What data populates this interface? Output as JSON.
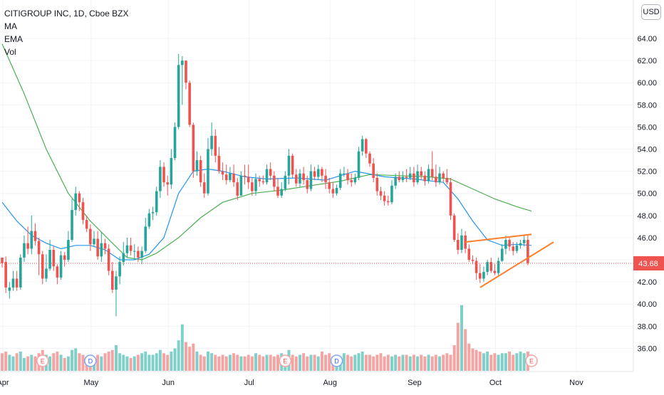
{
  "header": {
    "symbol_line": "CITIGROUP INC, 1D, Cboe BZX",
    "indicators": [
      "MA",
      "EMA",
      "Vol"
    ],
    "currency_button": "USD"
  },
  "price_label": "43.68",
  "colors": {
    "up": "#26a69a",
    "down": "#ef5350",
    "ma_line": "#2196f3",
    "ema_line": "#4caf50",
    "pattern": "#ff7f2a",
    "price_tag": "#ef5350"
  },
  "chart_data": {
    "type": "candlestick",
    "title": "CITIGROUP INC, 1D, Cboe BZX",
    "y_axis": {
      "side": "right",
      "range": [
        34.5,
        67
      ],
      "ticks": [
        "36.00",
        "38.00",
        "40.00",
        "42.00",
        "44.00",
        "46.00",
        "48.00",
        "50.00",
        "52.00",
        "54.00",
        "56.00",
        "58.00",
        "60.00",
        "62.00",
        "64.00"
      ]
    },
    "x_axis": {
      "labels": [
        "Apr",
        "May",
        "Jun",
        "Jul",
        "Aug",
        "Sep",
        "Oct",
        "Nov"
      ]
    },
    "last_price": 43.68,
    "grid": true,
    "candles": [
      [
        44.2,
        43.7,
        44.0,
        43.3
      ],
      [
        43.8,
        41.5,
        44.3,
        41.0
      ],
      [
        41.2,
        41.5,
        42.0,
        40.5
      ],
      [
        41.5,
        42.3,
        43.0,
        41.2
      ],
      [
        42.3,
        41.5,
        43.0,
        41.2
      ],
      [
        41.5,
        44.2,
        44.5,
        41.3
      ],
      [
        44.2,
        45.5,
        46.2,
        43.8
      ],
      [
        45.5,
        45.0,
        47.0,
        44.5
      ],
      [
        45.0,
        46.6,
        48.0,
        44.5
      ],
      [
        46.6,
        45.7,
        47.3,
        45.3
      ],
      [
        45.7,
        44.5,
        46.0,
        42.6
      ],
      [
        44.5,
        42.3,
        44.8,
        41.8
      ],
      [
        42.3,
        43.2,
        44.5,
        42.0
      ],
      [
        43.2,
        44.9,
        45.8,
        43.0
      ],
      [
        44.9,
        43.4,
        45.2,
        43.0
      ],
      [
        43.4,
        42.4,
        43.6,
        41.8
      ],
      [
        42.4,
        44.4,
        44.8,
        42.2
      ],
      [
        44.4,
        44.0,
        44.7,
        43.4
      ],
      [
        44.0,
        45.8,
        46.6,
        43.8
      ],
      [
        45.8,
        48.5,
        49.5,
        45.6
      ],
      [
        48.5,
        50.0,
        50.6,
        48.0
      ],
      [
        50.0,
        49.2,
        50.2,
        48.4
      ],
      [
        49.2,
        47.6,
        49.6,
        47.2
      ],
      [
        47.6,
        46.8,
        48.0,
        46.5
      ],
      [
        46.8,
        45.4,
        47.2,
        44.8
      ],
      [
        45.4,
        45.9,
        46.6,
        45.2
      ],
      [
        45.9,
        44.3,
        46.6,
        44.0
      ],
      [
        44.3,
        45.5,
        46.5,
        43.8
      ],
      [
        45.5,
        45.0,
        45.9,
        44.5
      ],
      [
        45.0,
        43.0,
        45.4,
        42.6
      ],
      [
        43.0,
        41.3,
        43.8,
        41.0
      ],
      [
        41.3,
        42.5,
        43.0,
        38.9
      ],
      [
        42.5,
        43.8,
        44.3,
        41.8
      ],
      [
        43.8,
        44.6,
        45.6,
        43.5
      ],
      [
        44.6,
        45.3,
        46.0,
        44.2
      ],
      [
        45.3,
        44.8,
        46.0,
        44.4
      ],
      [
        44.8,
        44.8,
        45.4,
        44.0
      ],
      [
        44.8,
        44.2,
        45.2,
        43.8
      ],
      [
        44.2,
        44.8,
        45.2,
        43.6
      ],
      [
        44.8,
        47.0,
        47.8,
        44.6
      ],
      [
        47.0,
        48.2,
        48.6,
        46.8
      ],
      [
        48.2,
        48.3,
        48.8,
        47.6
      ],
      [
        48.3,
        50.2,
        50.6,
        48.0
      ],
      [
        50.2,
        52.4,
        53.0,
        49.6
      ],
      [
        52.4,
        51.0,
        52.8,
        50.6
      ],
      [
        51.0,
        50.8,
        51.6,
        49.8
      ],
      [
        50.8,
        53.2,
        54.0,
        50.4
      ],
      [
        53.2,
        56.0,
        56.4,
        53.0
      ],
      [
        56.0,
        61.6,
        62.6,
        55.8
      ],
      [
        61.6,
        62.0,
        62.4,
        58.0
      ],
      [
        62.0,
        60.0,
        61.0,
        59.4
      ],
      [
        60.0,
        56.2,
        60.2,
        56.0
      ],
      [
        56.2,
        52.0,
        56.4,
        51.4
      ],
      [
        52.0,
        53.0,
        53.8,
        51.6
      ],
      [
        53.0,
        51.0,
        53.4,
        50.6
      ],
      [
        51.0,
        50.0,
        51.8,
        49.6
      ],
      [
        50.0,
        54.0,
        55.0,
        49.8
      ],
      [
        54.0,
        55.2,
        56.4,
        53.4
      ],
      [
        55.2,
        53.4,
        55.8,
        52.8
      ],
      [
        53.4,
        52.0,
        54.2,
        51.8
      ],
      [
        52.0,
        51.7,
        52.8,
        51.2
      ],
      [
        51.7,
        51.2,
        52.6,
        50.8
      ],
      [
        51.2,
        51.8,
        52.4,
        51.0
      ],
      [
        51.8,
        51.0,
        52.6,
        50.6
      ],
      [
        51.0,
        49.8,
        51.4,
        49.4
      ],
      [
        49.8,
        51.6,
        52.0,
        49.8
      ],
      [
        51.6,
        51.5,
        52.6,
        50.8
      ],
      [
        51.5,
        51.0,
        52.6,
        50.4
      ],
      [
        51.0,
        50.2,
        51.4,
        49.8
      ],
      [
        50.2,
        51.3,
        51.8,
        49.8
      ],
      [
        51.3,
        51.1,
        51.6,
        50.6
      ],
      [
        51.1,
        51.0,
        51.6,
        50.8
      ],
      [
        51.0,
        52.2,
        52.6,
        50.8
      ],
      [
        52.2,
        51.6,
        52.8,
        51.2
      ],
      [
        51.6,
        50.6,
        52.0,
        50.2
      ],
      [
        50.6,
        49.8,
        51.4,
        49.6
      ],
      [
        49.8,
        50.4,
        51.0,
        49.6
      ],
      [
        50.4,
        51.6,
        52.0,
        50.2
      ],
      [
        51.6,
        53.4,
        54.0,
        50.8
      ],
      [
        53.4,
        51.7,
        53.6,
        51.4
      ],
      [
        51.7,
        50.9,
        52.2,
        50.6
      ],
      [
        50.9,
        51.8,
        52.2,
        50.6
      ],
      [
        51.8,
        51.2,
        52.4,
        50.8
      ],
      [
        51.2,
        50.4,
        51.6,
        50.0
      ],
      [
        50.4,
        52.0,
        52.6,
        50.2
      ],
      [
        52.0,
        51.5,
        52.4,
        51.2
      ],
      [
        51.5,
        52.2,
        52.6,
        51.2
      ],
      [
        52.2,
        51.6,
        52.4,
        51.0
      ],
      [
        51.6,
        51.0,
        52.2,
        50.4
      ],
      [
        51.0,
        50.4,
        51.4,
        50.0
      ],
      [
        50.4,
        50.0,
        51.0,
        49.6
      ],
      [
        50.0,
        50.5,
        50.8,
        49.8
      ],
      [
        50.5,
        51.8,
        52.2,
        50.3
      ],
      [
        51.8,
        51.8,
        52.4,
        51.5
      ],
      [
        51.8,
        51.2,
        52.2,
        50.8
      ],
      [
        51.2,
        51.0,
        51.8,
        50.6
      ],
      [
        51.0,
        51.4,
        51.8,
        50.8
      ],
      [
        51.4,
        53.8,
        54.2,
        51.2
      ],
      [
        53.8,
        54.9,
        55.2,
        53.4
      ],
      [
        54.9,
        53.6,
        55.0,
        53.2
      ],
      [
        53.6,
        52.7,
        53.8,
        52.4
      ],
      [
        52.7,
        51.4,
        53.2,
        51.0
      ],
      [
        51.4,
        50.2,
        51.8,
        49.8
      ],
      [
        50.2,
        49.8,
        50.6,
        49.4
      ],
      [
        49.8,
        49.3,
        50.2,
        48.9
      ],
      [
        49.3,
        49.2,
        49.8,
        48.9
      ],
      [
        49.2,
        50.7,
        51.2,
        49.0
      ],
      [
        50.7,
        51.5,
        51.8,
        50.4
      ],
      [
        51.5,
        51.2,
        52.0,
        51.0
      ],
      [
        51.2,
        51.5,
        52.0,
        51.0
      ],
      [
        51.5,
        51.4,
        52.2,
        51.0
      ],
      [
        51.4,
        51.8,
        52.4,
        51.2
      ],
      [
        51.8,
        51.0,
        52.4,
        50.6
      ],
      [
        51.0,
        52.0,
        52.6,
        50.8
      ],
      [
        52.0,
        51.6,
        52.4,
        51.2
      ],
      [
        51.6,
        51.1,
        52.0,
        50.7
      ],
      [
        51.1,
        52.2,
        52.6,
        50.9
      ],
      [
        52.2,
        51.5,
        53.8,
        51.2
      ],
      [
        51.5,
        51.0,
        52.6,
        50.6
      ],
      [
        51.0,
        51.8,
        52.4,
        50.8
      ],
      [
        51.8,
        51.4,
        52.0,
        51.0
      ],
      [
        51.4,
        51.0,
        52.2,
        50.8
      ],
      [
        51.0,
        48.0,
        51.4,
        47.6
      ],
      [
        48.0,
        45.8,
        48.2,
        45.6
      ],
      [
        45.8,
        44.9,
        46.4,
        44.5
      ],
      [
        44.9,
        46.2,
        46.8,
        44.6
      ],
      [
        46.2,
        45.0,
        46.6,
        44.6
      ],
      [
        45.0,
        44.0,
        45.4,
        43.8
      ],
      [
        44.0,
        43.9,
        44.4,
        43.6
      ],
      [
        43.9,
        42.8,
        44.2,
        42.2
      ],
      [
        42.8,
        42.3,
        43.6,
        41.9
      ],
      [
        42.3,
        42.9,
        43.4,
        42.0
      ],
      [
        42.9,
        43.8,
        44.0,
        42.6
      ],
      [
        43.8,
        43.0,
        44.2,
        42.8
      ],
      [
        43.0,
        42.8,
        43.6,
        42.6
      ],
      [
        42.8,
        43.9,
        44.2,
        42.6
      ],
      [
        43.9,
        45.0,
        45.4,
        43.8
      ],
      [
        45.0,
        45.8,
        46.2,
        44.5
      ],
      [
        45.8,
        45.2,
        46.0,
        44.8
      ],
      [
        45.2,
        44.8,
        45.6,
        44.4
      ],
      [
        44.8,
        45.3,
        45.6,
        44.6
      ],
      [
        45.3,
        45.5,
        45.8,
        45.0
      ],
      [
        45.5,
        45.8,
        46.2,
        45.2
      ],
      [
        45.8,
        43.7,
        46.3,
        43.5
      ]
    ],
    "volume_ratio": [
      0.55,
      0.6,
      0.5,
      0.45,
      0.55,
      0.6,
      0.4,
      0.45,
      0.5,
      0.45,
      0.55,
      0.65,
      0.5,
      0.45,
      0.55,
      0.6,
      0.5,
      0.4,
      0.45,
      0.65,
      0.7,
      0.55,
      0.5,
      0.45,
      0.45,
      0.4,
      0.5,
      0.45,
      0.55,
      0.6,
      0.65,
      0.8,
      0.55,
      0.5,
      0.45,
      0.4,
      0.45,
      0.5,
      0.55,
      0.6,
      0.5,
      0.5,
      0.55,
      0.65,
      0.55,
      0.5,
      0.6,
      0.7,
      0.95,
      1.45,
      0.9,
      0.75,
      0.85,
      0.6,
      0.5,
      0.45,
      0.6,
      0.55,
      0.5,
      0.45,
      0.5,
      0.45,
      0.5,
      0.55,
      0.5,
      0.45,
      0.45,
      0.5,
      0.45,
      0.55,
      0.5,
      0.45,
      0.5,
      0.5,
      0.45,
      0.5,
      0.55,
      0.5,
      0.65,
      0.5,
      0.45,
      0.5,
      0.55,
      0.45,
      0.5,
      0.5,
      0.45,
      0.6,
      0.5,
      0.55,
      0.45,
      0.5,
      0.45,
      0.55,
      0.5,
      0.45,
      0.5,
      0.55,
      0.6,
      0.5,
      0.5,
      0.45,
      0.5,
      0.55,
      0.45,
      0.5,
      0.45,
      0.5,
      0.45,
      0.5,
      0.5,
      0.45,
      0.5,
      0.45,
      0.5,
      0.45,
      0.5,
      0.45,
      0.5,
      0.45,
      0.5,
      0.55,
      0.5,
      0.8,
      1.5,
      2.05,
      1.3,
      0.85,
      0.7,
      0.65,
      0.6,
      0.55,
      0.6,
      0.5,
      0.55,
      0.5,
      0.55,
      0.55,
      0.6,
      0.5,
      0.55,
      0.6,
      0.55,
      0.6,
      1.05
    ],
    "ma_line": [
      [
        0,
        49.2
      ],
      [
        4,
        47.5
      ],
      [
        8,
        46.2
      ],
      [
        12,
        45.5
      ],
      [
        16,
        45.0
      ],
      [
        20,
        45.3
      ],
      [
        24,
        45.3
      ],
      [
        28,
        44.9
      ],
      [
        32,
        44.0
      ],
      [
        36,
        44.0
      ],
      [
        40,
        44.5
      ],
      [
        44,
        46.0
      ],
      [
        48,
        50.0
      ],
      [
        52,
        52.0
      ],
      [
        56,
        52.2
      ],
      [
        60,
        52.0
      ],
      [
        66,
        51.5
      ],
      [
        72,
        51.3
      ],
      [
        80,
        51.4
      ],
      [
        88,
        51.2
      ],
      [
        96,
        52.0
      ],
      [
        104,
        51.5
      ],
      [
        112,
        51.3
      ],
      [
        120,
        51.0
      ],
      [
        124,
        49.5
      ],
      [
        128,
        47.5
      ],
      [
        132,
        45.8
      ],
      [
        136,
        45.3
      ],
      [
        140,
        45.4
      ],
      [
        144,
        45.3
      ]
    ],
    "ema_line": [
      [
        0,
        63.5
      ],
      [
        6,
        59.0
      ],
      [
        12,
        54.0
      ],
      [
        18,
        50.0
      ],
      [
        24,
        47.5
      ],
      [
        30,
        45.5
      ],
      [
        34,
        44.2
      ],
      [
        38,
        44.0
      ],
      [
        42,
        44.6
      ],
      [
        48,
        46.0
      ],
      [
        54,
        47.8
      ],
      [
        60,
        49.2
      ],
      [
        68,
        50.0
      ],
      [
        76,
        50.3
      ],
      [
        84,
        50.7
      ],
      [
        92,
        51.1
      ],
      [
        100,
        51.7
      ],
      [
        108,
        51.6
      ],
      [
        116,
        51.5
      ],
      [
        122,
        51.3
      ],
      [
        128,
        50.4
      ],
      [
        134,
        49.5
      ],
      [
        140,
        48.8
      ],
      [
        144,
        48.4
      ]
    ],
    "wedge_upper": [
      [
        126,
        45.6
      ],
      [
        144,
        46.3
      ]
    ],
    "wedge_lower": [
      [
        130,
        41.5
      ],
      [
        150,
        45.6
      ]
    ],
    "event_markers": [
      {
        "label": "E",
        "index": 11,
        "type": "earnings"
      },
      {
        "label": "D",
        "index": 24,
        "type": "dividend"
      },
      {
        "label": "E",
        "index": 77,
        "type": "earnings"
      },
      {
        "label": "D",
        "index": 91,
        "type": "dividend"
      },
      {
        "label": "E",
        "index": 144,
        "type": "earnings"
      }
    ]
  }
}
